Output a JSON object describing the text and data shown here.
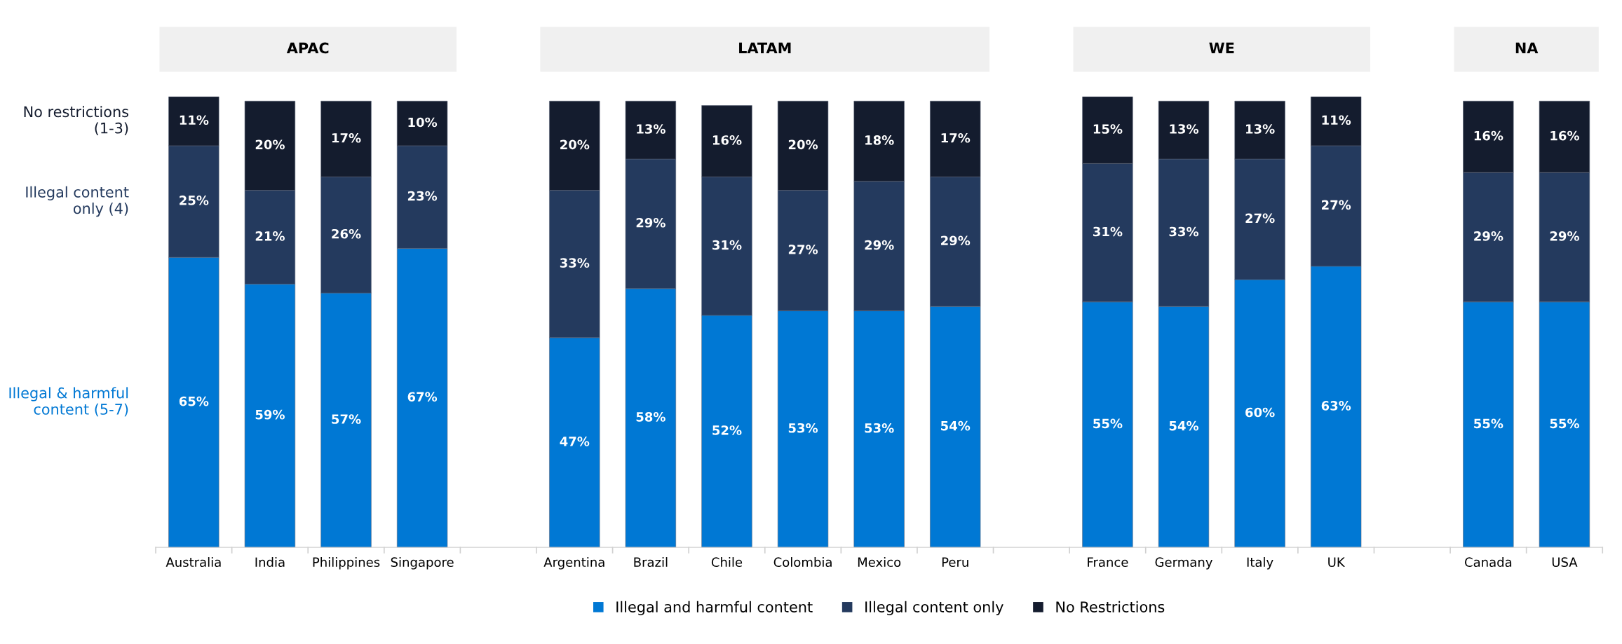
{
  "chart_data": {
    "type": "bar",
    "stacked": true,
    "categories": [
      "Australia",
      "India",
      "Philippines",
      "Singapore",
      null,
      "Argentina",
      "Brazil",
      "Chile",
      "Colombia",
      "Mexico",
      "Peru",
      null,
      "France",
      "Germany",
      "Italy",
      "UK",
      null,
      "Canada",
      "USA"
    ],
    "series": [
      {
        "name": "Illegal and harmful content",
        "color": "#0078d4",
        "values": [
          65,
          59,
          57,
          67,
          null,
          47,
          58,
          52,
          53,
          53,
          54,
          null,
          55,
          54,
          60,
          63,
          null,
          55,
          55
        ],
        "value_labels": [
          "65%",
          "59%",
          "57%",
          "67%",
          null,
          "47%",
          "58%",
          "52%",
          "53%",
          "53%",
          "54%",
          null,
          "55%",
          "54%",
          "60%",
          "63%",
          null,
          "55%",
          "55%"
        ]
      },
      {
        "name": "Illegal content only",
        "color": "#243a5e",
        "values": [
          25,
          21,
          26,
          23,
          null,
          33,
          29,
          31,
          27,
          29,
          29,
          null,
          31,
          33,
          27,
          27,
          null,
          29,
          29
        ],
        "value_labels": [
          "25%",
          "21%",
          "26%",
          "23%",
          null,
          "33%",
          "29%",
          "31%",
          "27%",
          "29%",
          "29%",
          null,
          "31%",
          "33%",
          "27%",
          "27%",
          null,
          "29%",
          "29%"
        ]
      },
      {
        "name": "No Restrictions",
        "color": "#141c2e",
        "values": [
          11,
          20,
          17,
          10,
          null,
          20,
          13,
          16,
          20,
          18,
          17,
          null,
          15,
          13,
          13,
          11,
          null,
          16,
          16
        ],
        "value_labels": [
          "11%",
          "20%",
          "17%",
          "10%",
          null,
          "20%",
          "13%",
          "16%",
          "20%",
          "18%",
          "17%",
          null,
          "15%",
          "13%",
          "13%",
          "11%",
          null,
          "16%",
          "16%"
        ]
      }
    ],
    "annotations": [
      "APAC",
      "LATAM",
      "WE",
      "NA",
      "No restrictions\n(1-3)",
      "Illegal content\nonly (4)",
      "Illegal & harmful\ncontent (5-7)"
    ],
    "legend": "bottom",
    "grid": false,
    "tick_labels": "x"
  }
}
